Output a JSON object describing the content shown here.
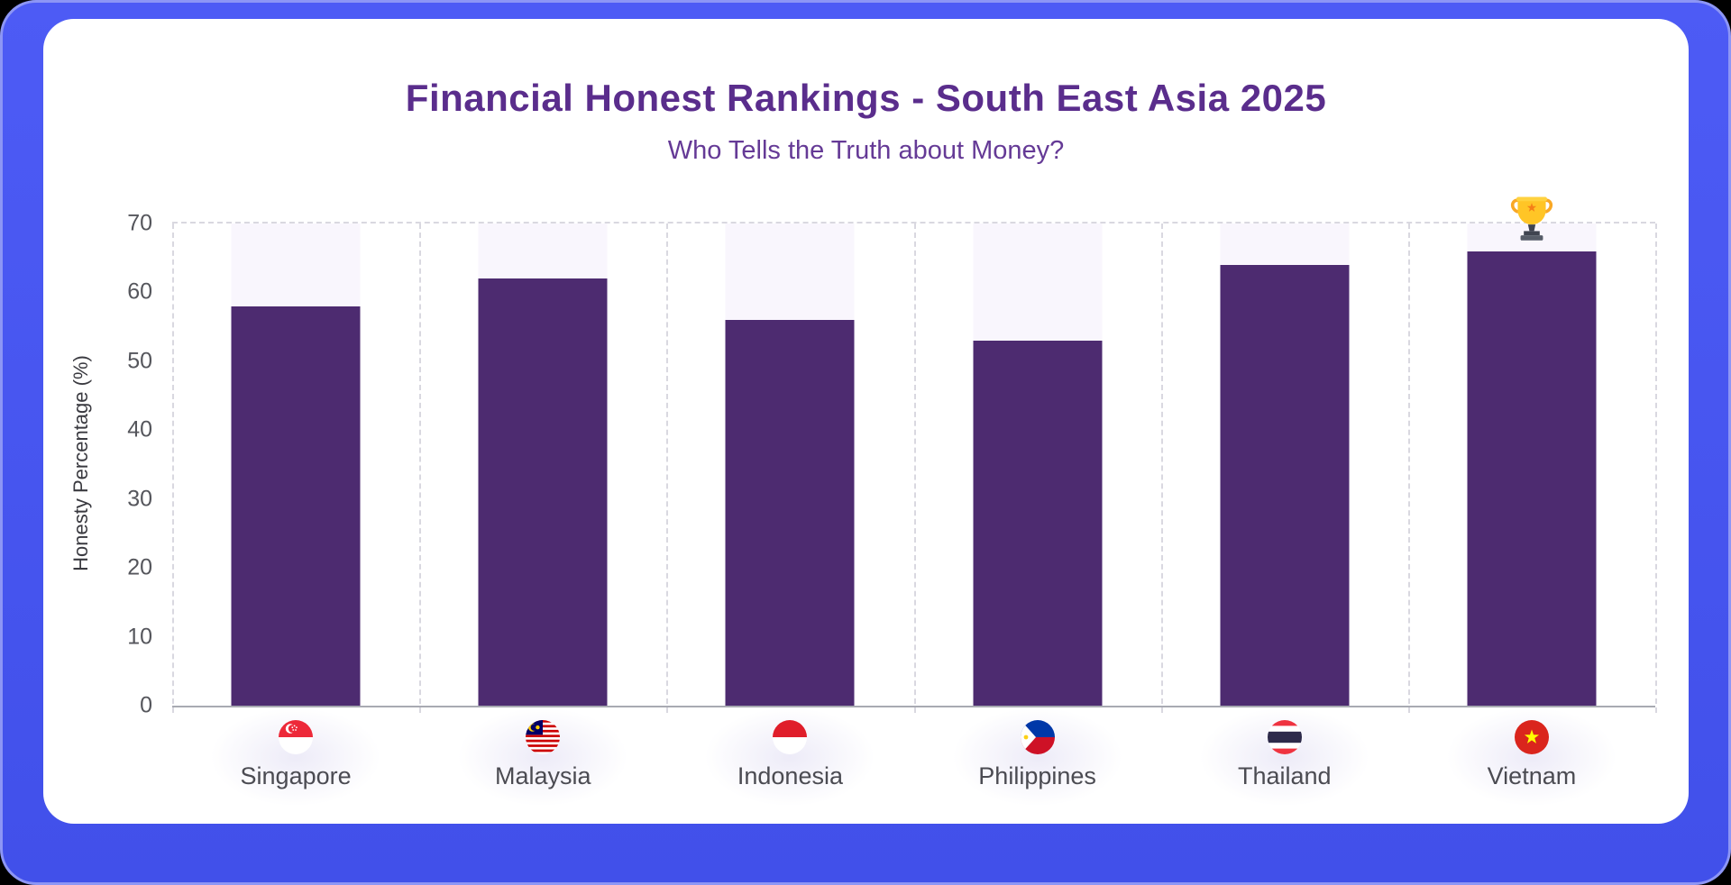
{
  "header": {
    "title": "Financial Honest Rankings - South East Asia 2025",
    "subtitle": "Who Tells the Truth about Money?"
  },
  "chart_data": {
    "type": "bar",
    "title": "Financial Honest Rankings - South East Asia 2025",
    "subtitle": "Who Tells the Truth about Money?",
    "xlabel": "",
    "ylabel": "Honesty Percentage (%)",
    "ylim": [
      0,
      70
    ],
    "yticks": [
      0,
      10,
      20,
      30,
      40,
      50,
      60,
      70
    ],
    "categories": [
      "Singapore",
      "Malaysia",
      "Indonesia",
      "Philippines",
      "Thailand",
      "Vietnam"
    ],
    "values": [
      58,
      62,
      56,
      53,
      64,
      66
    ],
    "bar_color": "#4d2b70",
    "bar_track_color": "#f9f6fd",
    "grid": "dashed vertical category separators and dashed top line at y=70",
    "legend": "none",
    "annotations": [
      {
        "type": "trophy-icon",
        "category": "Vietnam",
        "note": "highest honesty percentage"
      }
    ]
  },
  "x_axis": {
    "items": [
      {
        "label": "Singapore",
        "icon": "flag-singapore-icon"
      },
      {
        "label": "Malaysia",
        "icon": "flag-malaysia-icon"
      },
      {
        "label": "Indonesia",
        "icon": "flag-indonesia-icon"
      },
      {
        "label": "Philippines",
        "icon": "flag-philippines-icon"
      },
      {
        "label": "Thailand",
        "icon": "flag-thailand-icon"
      },
      {
        "label": "Vietnam",
        "icon": "flag-vietnam-icon"
      }
    ]
  },
  "colors": {
    "frame": "#4454ef",
    "frame_edge": "#8d96f5",
    "card": "#ffffff",
    "title": "#5a2d8c",
    "subtitle": "#653a96",
    "bar": "#4d2b70",
    "track": "#f9f6fd",
    "grid": "#d9d8e0",
    "axis_line": "#a8aab2",
    "tick_text": "#55565c",
    "label_text": "#4b4b52"
  }
}
